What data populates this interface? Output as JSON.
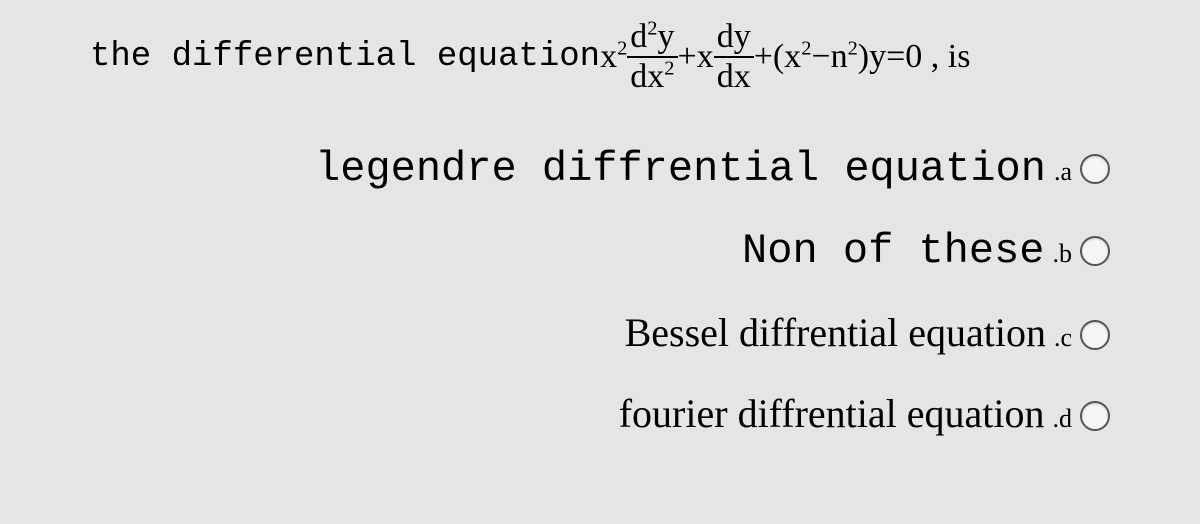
{
  "question": {
    "prefix": "the differential equation ",
    "x2": "x",
    "x2_sup": "2",
    "frac1_num_d": "d",
    "frac1_num_sup": "2",
    "frac1_num_y": "y",
    "frac1_den_dx": "dx",
    "frac1_den_sup": "2",
    "plus_x": "+x",
    "frac2_num": "dy",
    "frac2_den": "dx",
    "plus_open": "+(x",
    "sq1": "2",
    "minus_n": "−n",
    "sq2": "2",
    "close": ")y=0 , is"
  },
  "options": {
    "a": {
      "text": "legendre diffrential equation",
      "label": ".a"
    },
    "b": {
      "text": "Non of these",
      "label": ".b"
    },
    "c": {
      "text": "Bessel diffrential equation",
      "label": ".c"
    },
    "d": {
      "text": "fourier diffrential equation",
      "label": ".d"
    }
  },
  "colors": {
    "background": "#e3e5e6",
    "text": "#000000",
    "radio_border": "#555555"
  }
}
